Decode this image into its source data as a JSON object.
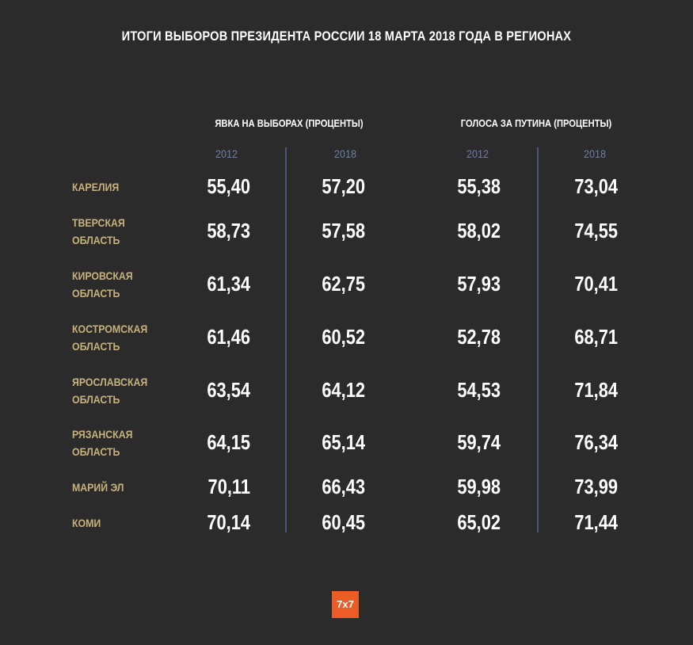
{
  "chart_data": {
    "type": "table",
    "title": "ИТОГИ ВЫБОРОВ ПРЕЗИДЕНТА РОССИИ 18 МАРТА 2018 ГОДА В РЕГИОНАХ",
    "groups": [
      {
        "label": "ЯВКА НА ВЫБОРАХ (ПРОЦЕНТЫ)",
        "years": [
          "2012",
          "2018"
        ]
      },
      {
        "label": "ГОЛОСА ЗА ПУТИНА (ПРОЦЕНТЫ)",
        "years": [
          "2012",
          "2018"
        ]
      }
    ],
    "rows": [
      {
        "region": [
          "КАРЕЛИЯ"
        ],
        "values": [
          "55,40",
          "57,20",
          "55,38",
          "73,04"
        ]
      },
      {
        "region": [
          "ТВЕРСКАЯ",
          "ОБЛАСТЬ"
        ],
        "values": [
          "58,73",
          "57,58",
          "58,02",
          "74,55"
        ]
      },
      {
        "region": [
          "КИРОВСКАЯ",
          "ОБЛАСТЬ"
        ],
        "values": [
          "61,34",
          "62,75",
          "57,93",
          "70,41"
        ]
      },
      {
        "region": [
          "КОСТРОМСКАЯ",
          "ОБЛАСТЬ"
        ],
        "values": [
          "61,46",
          "60,52",
          "52,78",
          "68,71"
        ]
      },
      {
        "region": [
          "ЯРОСЛАВСКАЯ",
          "ОБЛАСТЬ"
        ],
        "values": [
          "63,54",
          "64,12",
          "54,53",
          "71,84"
        ]
      },
      {
        "region": [
          "РЯЗАНСКАЯ",
          "ОБЛАСТЬ"
        ],
        "values": [
          "64,15",
          "65,14",
          "59,74",
          "76,34"
        ]
      },
      {
        "region": [
          "МАРИЙ ЭЛ"
        ],
        "values": [
          "70,11",
          "66,43",
          "59,98",
          "73,99"
        ]
      },
      {
        "region": [
          "КОМИ"
        ],
        "values": [
          "70,14",
          "60,45",
          "65,02",
          "71,44"
        ]
      }
    ]
  },
  "logo": {
    "text": "7x7"
  },
  "colors": {
    "background": "#2b2b2c",
    "region_label": "#c8b27c",
    "year_label": "#6f7fa8",
    "divider": "#4a5577",
    "logo_bg": "#ee5b27"
  }
}
